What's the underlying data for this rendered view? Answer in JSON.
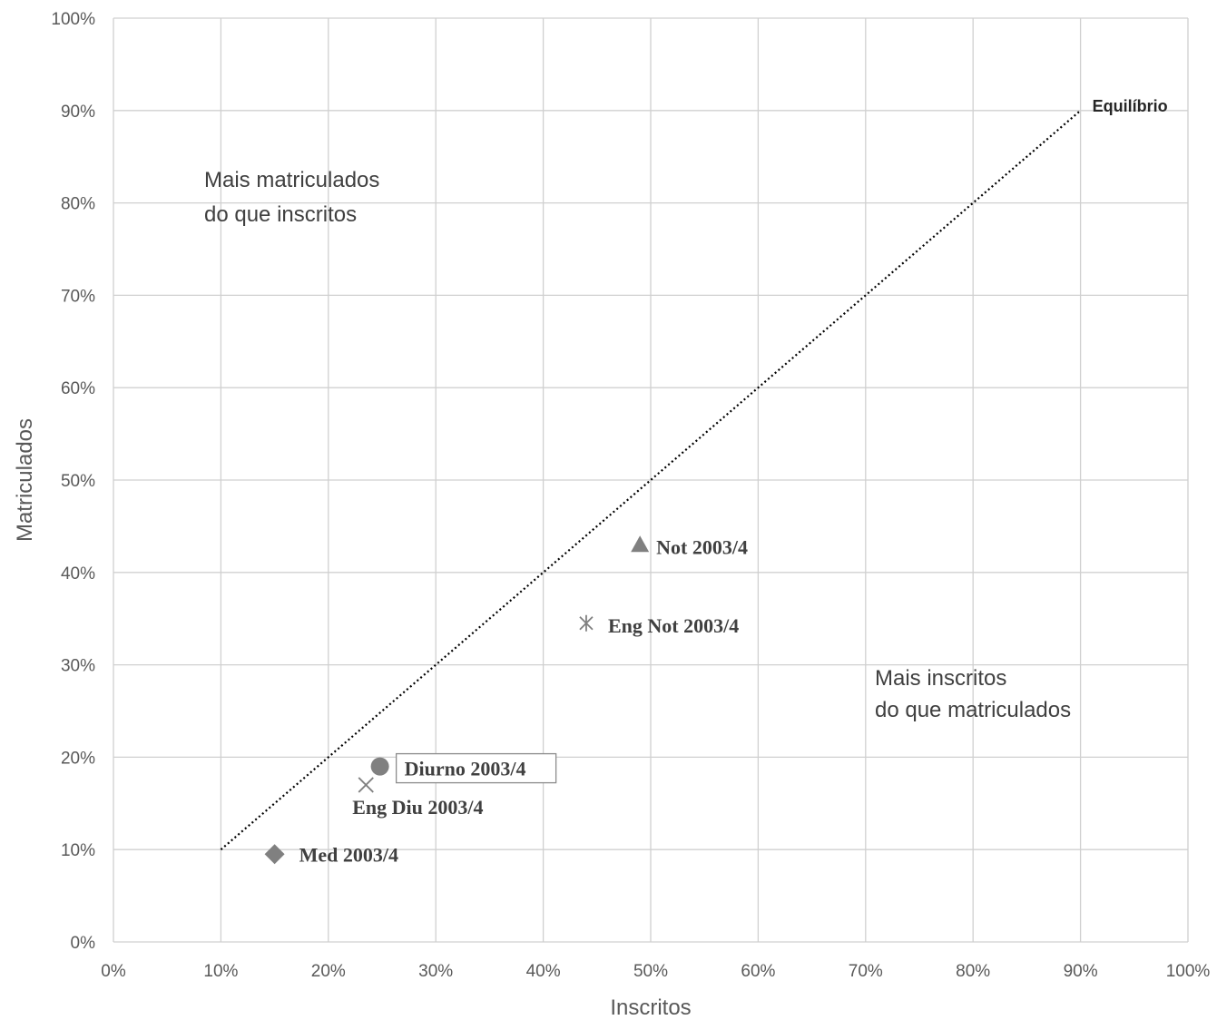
{
  "chart_data": {
    "type": "scatter",
    "xlabel": "Inscritos",
    "ylabel": "Matriculados",
    "xlim": [
      0,
      100
    ],
    "ylim": [
      0,
      100
    ],
    "x_ticks": [
      "0%",
      "10%",
      "20%",
      "30%",
      "40%",
      "50%",
      "60%",
      "70%",
      "80%",
      "90%",
      "100%"
    ],
    "y_ticks": [
      "0%",
      "10%",
      "20%",
      "30%",
      "40%",
      "50%",
      "60%",
      "70%",
      "80%",
      "90%",
      "100%"
    ],
    "grid": true,
    "equilibrium": {
      "label": "Equilíbrio",
      "x": [
        10,
        90
      ],
      "y": [
        10,
        90
      ]
    },
    "regions": [
      {
        "lines": [
          "Mais matriculados",
          "do que inscritos"
        ]
      },
      {
        "lines": [
          "Mais inscritos",
          "do que matriculados"
        ]
      }
    ],
    "points": [
      {
        "label": "Not 2003/4",
        "x": 49,
        "y": 43,
        "marker": "triangle"
      },
      {
        "label": "Eng Not 2003/4",
        "x": 44,
        "y": 34.5,
        "marker": "star"
      },
      {
        "label": "Diurno 2003/4",
        "x": 24.8,
        "y": 19,
        "marker": "circle"
      },
      {
        "label": "Eng Diu 2003/4",
        "x": 23.5,
        "y": 17,
        "marker": "x"
      },
      {
        "label": "Med 2003/4",
        "x": 15,
        "y": 9.5,
        "marker": "diamond"
      }
    ],
    "colors": {
      "marker": "#808080",
      "grid": "#d0d0d0",
      "line": "#000000"
    }
  }
}
